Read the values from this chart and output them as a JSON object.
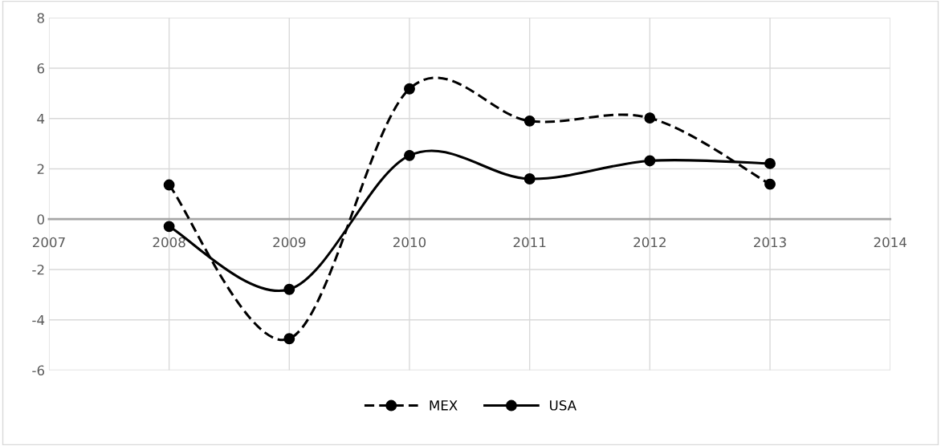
{
  "chart_data": {
    "type": "line",
    "x": [
      2008,
      2009,
      2010,
      2011,
      2012,
      2013
    ],
    "series": [
      {
        "name": "MEX",
        "color": "#000000",
        "line_style": "dashed",
        "values": [
          1.36,
          -4.75,
          5.18,
          3.9,
          4.02,
          1.39
        ]
      },
      {
        "name": "USA",
        "color": "#000000",
        "line_style": "solid",
        "values": [
          -0.29,
          -2.79,
          2.53,
          1.6,
          2.32,
          2.21
        ]
      }
    ],
    "xlim": [
      2007,
      2014
    ],
    "xticks": [
      2007,
      2008,
      2009,
      2010,
      2011,
      2012,
      2013,
      2014
    ],
    "ylim": [
      -6,
      8
    ],
    "yticks": [
      -6,
      -4,
      -2,
      0,
      2,
      4,
      6,
      8
    ],
    "grid": true,
    "legend": "bottom",
    "marker": "circle"
  }
}
